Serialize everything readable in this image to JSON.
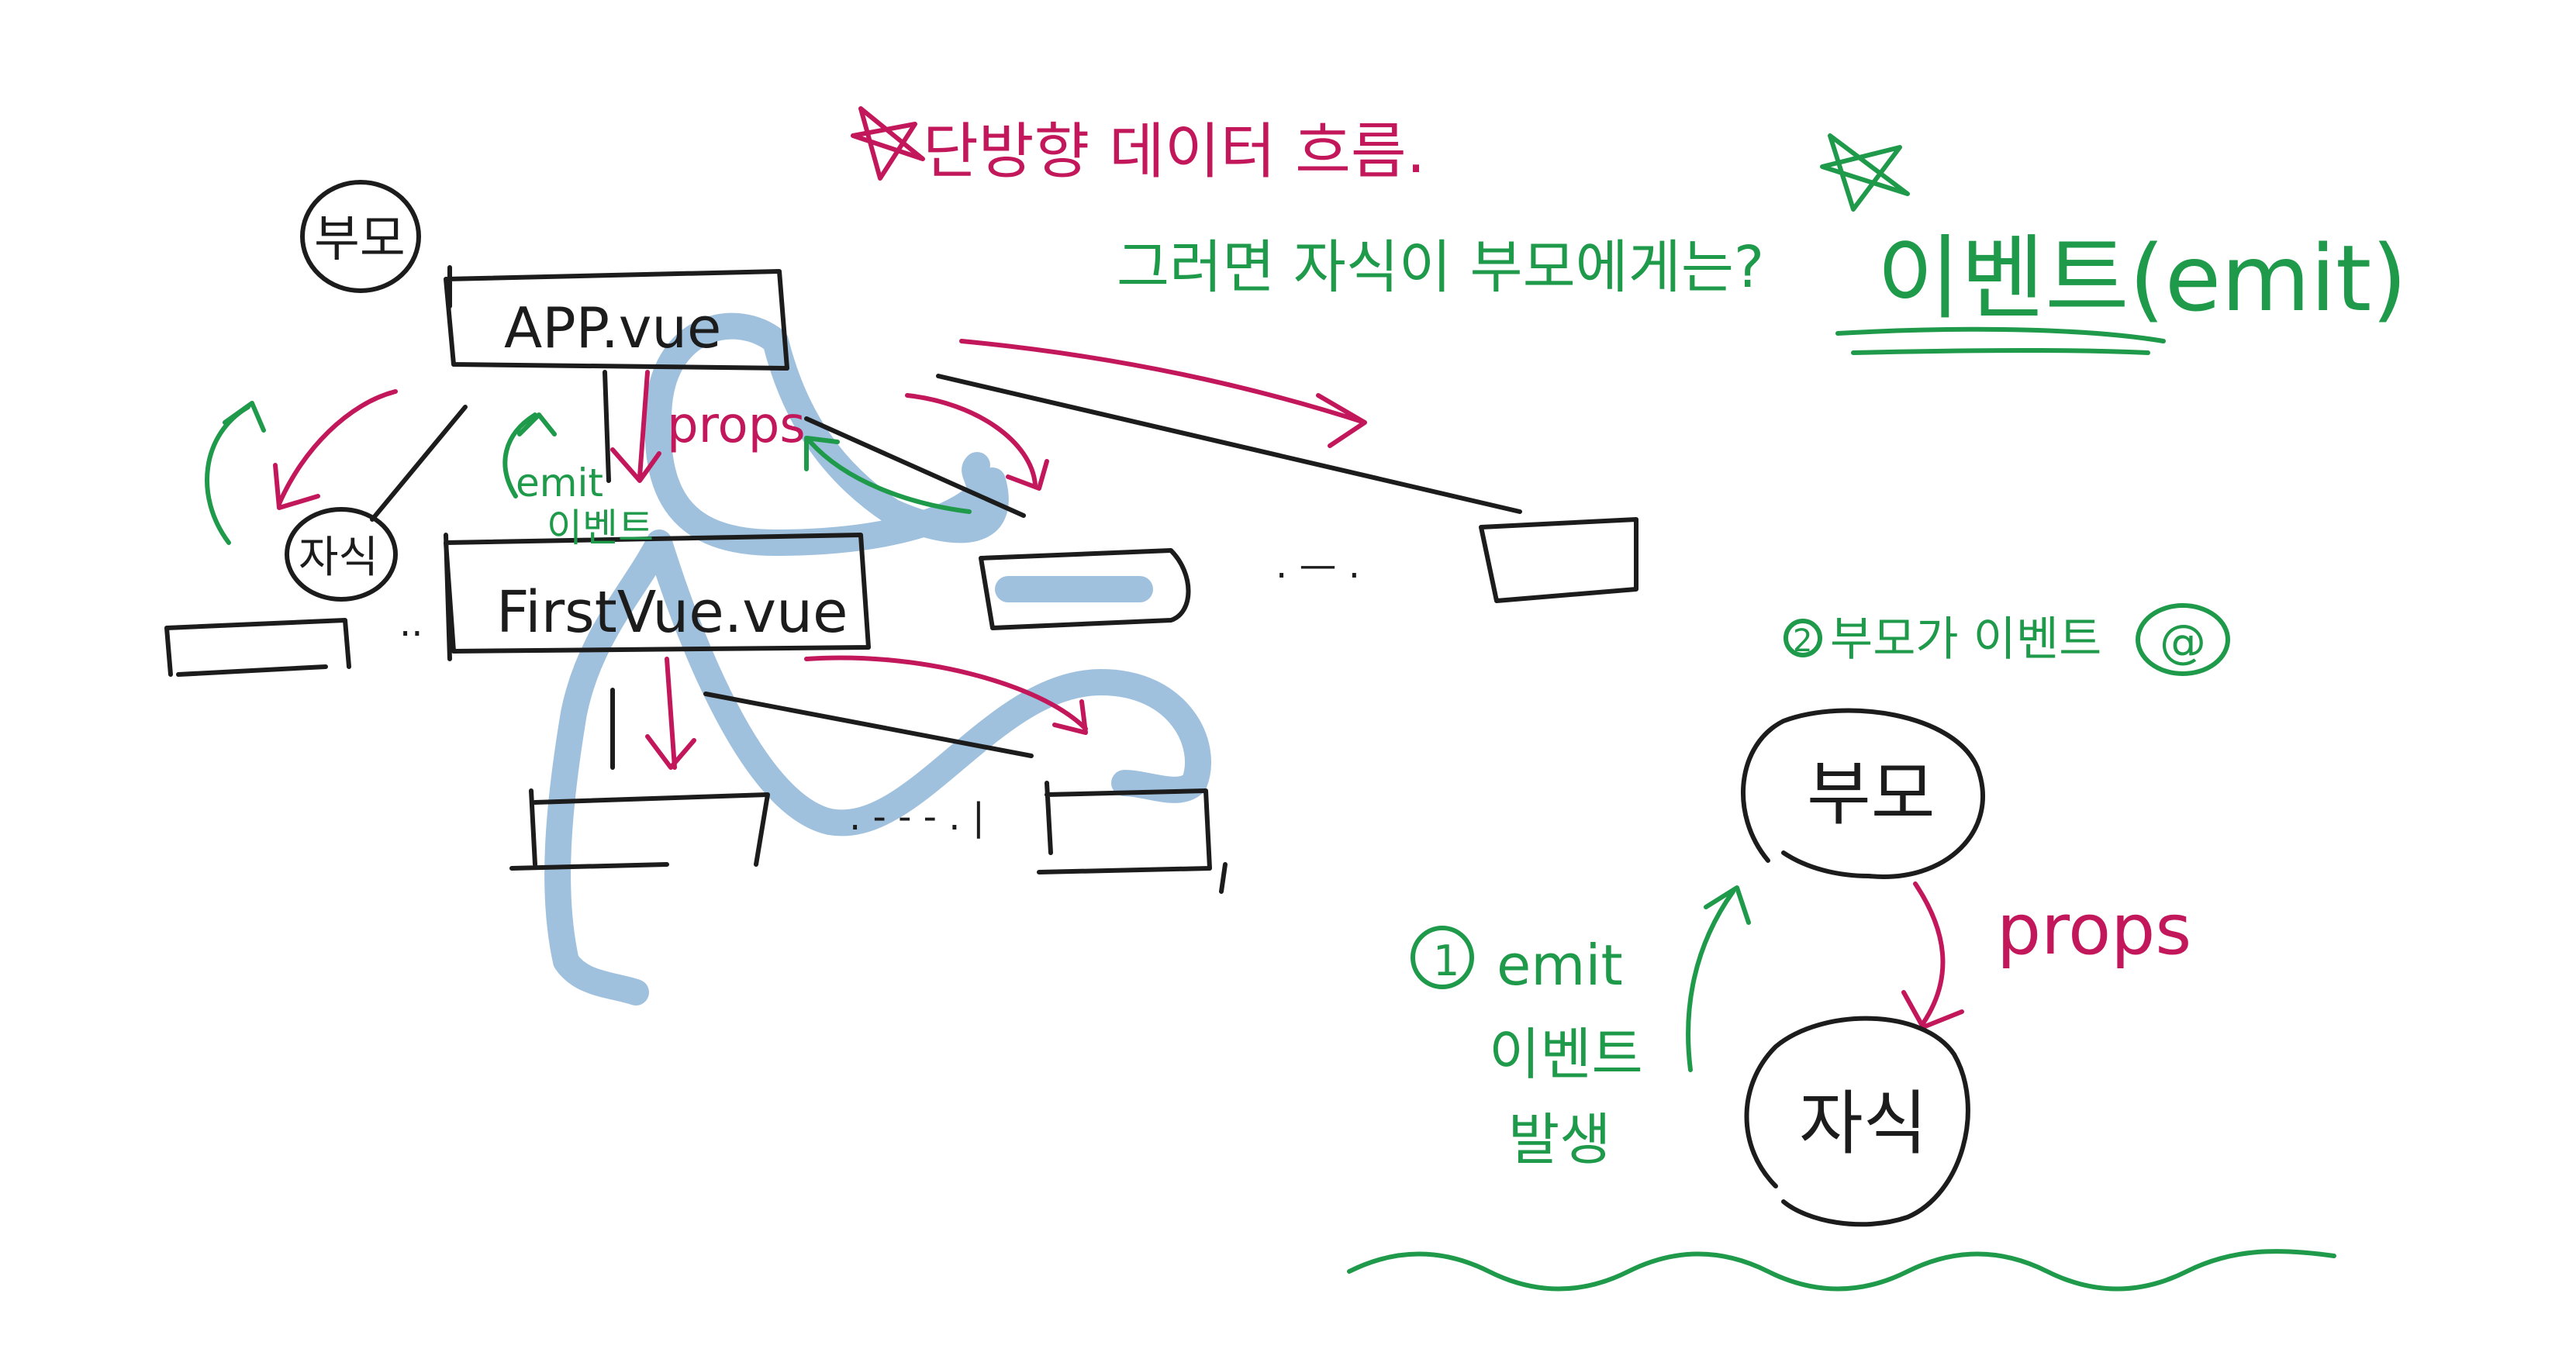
{
  "texts": {
    "title": "단방향 데이터 흐름.",
    "question": "그러면 자식이 부모에게는?",
    "answer": "이벤트(emit)",
    "parent_tree": "부모",
    "child_tree": "자식",
    "app_component": "APP.vue",
    "first_component": "FirstVue.vue",
    "props_tree": "props",
    "emit_tree": "emit",
    "event_tree": "이벤트",
    "ellipsis_top": ". — .",
    "ellipsis_left": "..",
    "ellipsis_bottom": ". - - - . |",
    "step2_number": "2",
    "step2_text": "부모가 이벤트",
    "step2_at": "@",
    "parent_right": "부모",
    "child_right": "자식",
    "props_right": "props",
    "step1_number": "1",
    "emit_right": "emit",
    "event_right": "이벤트",
    "occur_right": "발생"
  }
}
